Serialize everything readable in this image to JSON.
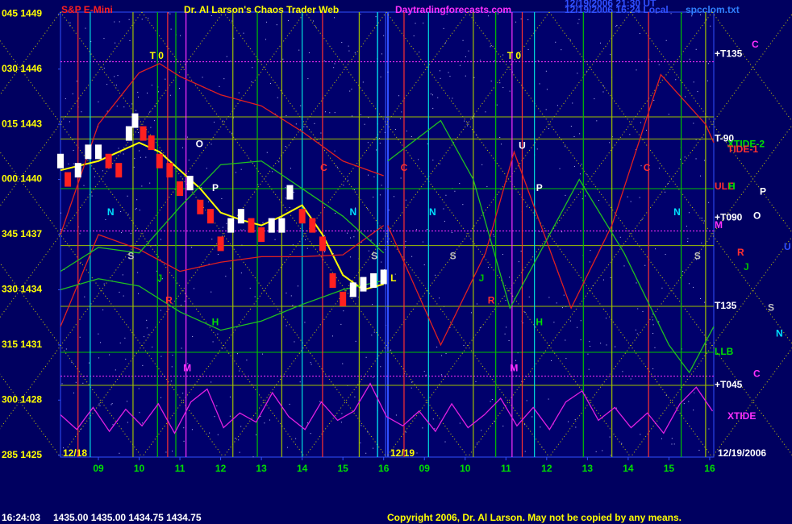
{
  "chart_data": {
    "type": "line",
    "header": {
      "symbol": "S&P E-Mini",
      "title": "Dr. Al Larson's Chaos Trader Web",
      "site": "Daytradingforecasts.com",
      "stamp1": "12/19/2006 21:30 UT",
      "stamp2": "12/19/2006 16:24 Local",
      "file": "spcclom.txt"
    },
    "xlim": [
      8.07,
      24.1
    ],
    "ylim": [
      1424.9,
      1449.1
    ],
    "xticks": [
      {
        "value": 9,
        "label": "09"
      },
      10,
      11,
      12,
      13,
      14,
      15,
      16,
      {
        "value": 17,
        "label": "09"
      },
      {
        "value": 18,
        "label": "10"
      },
      {
        "value": 19,
        "label": "11"
      },
      {
        "value": 20,
        "label": "12"
      },
      {
        "value": 21,
        "label": "13"
      },
      {
        "value": 22,
        "label": "14"
      },
      {
        "value": 23,
        "label": "15"
      },
      {
        "value": 24,
        "label": "16"
      }
    ],
    "yticks": [
      {
        "value": 1449,
        "label": "045 1449"
      },
      {
        "value": 1446,
        "label": "030 1446"
      },
      {
        "value": 1443,
        "label": "015 1443"
      },
      {
        "value": 1440,
        "label": "000 1440"
      },
      {
        "value": 1437,
        "label": "345 1437"
      },
      {
        "value": 1434,
        "label": "330 1434"
      },
      {
        "value": 1431,
        "label": "315 1431"
      },
      {
        "value": 1428,
        "label": "300 1428"
      },
      {
        "value": 1425,
        "label": "285 1425"
      }
    ],
    "day_labels": [
      "12/18",
      "12/19",
      "12/19/2006"
    ],
    "price": {
      "color_up": "#ffffff",
      "color_down": "#ff2020",
      "x": [
        8.07,
        8.25,
        8.5,
        8.75,
        9.0,
        9.25,
        9.5,
        9.75,
        9.9,
        10.1,
        10.3,
        10.5,
        10.75,
        11.0,
        11.25,
        11.5,
        11.75,
        12.0,
        12.25,
        12.5,
        12.75,
        13.0,
        13.25,
        13.5,
        13.7,
        14.0,
        14.25,
        14.5,
        14.75,
        15.0,
        15.25,
        15.5,
        15.75,
        16.0
      ],
      "values": [
        1441,
        1440,
        1440.5,
        1441.5,
        1441.5,
        1441,
        1440.5,
        1442.5,
        1443.2,
        1442.5,
        1442,
        1441,
        1440.5,
        1439.5,
        1439.8,
        1438.5,
        1438,
        1436.5,
        1437.5,
        1438,
        1437.5,
        1437,
        1437.5,
        1437.5,
        1439.3,
        1438,
        1437.5,
        1436.5,
        1434.5,
        1433.5,
        1434,
        1434.3,
        1434.5,
        1434.7
      ]
    },
    "series": [
      {
        "color": "#ffff00",
        "x": [
          8.07,
          9,
          10,
          10.5,
          11,
          11.5,
          12,
          12.5,
          13,
          13.5,
          14,
          14.5,
          15,
          15.5,
          16
        ],
        "values": [
          1440.5,
          1441,
          1442,
          1441.5,
          1440.5,
          1439.5,
          1438.2,
          1437.8,
          1437.5,
          1438,
          1438.6,
          1437,
          1434.8,
          1434,
          1434.3
        ]
      },
      {
        "color": "#e02020",
        "x": [
          8.07,
          9,
          10,
          10.5,
          11,
          12,
          13,
          14,
          15,
          16
        ],
        "values": [
          1437,
          1443,
          1445.8,
          1446.3,
          1445.6,
          1444.6,
          1444,
          1442.6,
          1441,
          1440.2
        ]
      },
      {
        "color": "#e02020",
        "x": [
          8.07,
          9,
          10,
          11,
          12,
          13,
          14,
          15,
          16
        ],
        "values": [
          1432,
          1437,
          1436.2,
          1435,
          1435.5,
          1435.8,
          1435.8,
          1435.9,
          1437.5
        ]
      },
      {
        "color": "#e02020",
        "x": [
          16.1,
          17.4,
          18.5,
          19.2,
          20.6,
          21.6,
          22.8,
          23.9,
          24.1
        ],
        "values": [
          1437.5,
          1431,
          1436,
          1441.5,
          1433,
          1437.5,
          1445.7,
          1443,
          1442
        ]
      },
      {
        "color": "#20c020",
        "x": [
          8.07,
          9,
          10,
          11,
          12,
          13,
          14,
          15,
          16
        ],
        "values": [
          1435,
          1436.3,
          1436,
          1438.5,
          1440.8,
          1441,
          1439.5,
          1438,
          1436
        ]
      },
      {
        "color": "#20c020",
        "x": [
          8.07,
          9,
          10,
          11,
          12,
          13,
          14,
          15,
          16
        ],
        "values": [
          1434,
          1434.6,
          1434.2,
          1432.8,
          1431.8,
          1432.3,
          1433.2,
          1434,
          1434.5
        ]
      },
      {
        "color": "#20c020",
        "x": [
          16.1,
          17.4,
          18.2,
          19.1,
          20.8,
          21.9,
          23.0,
          23.5,
          24.1
        ],
        "values": [
          1441,
          1443.2,
          1440,
          1433,
          1440,
          1436,
          1431,
          1429.5,
          1432
        ]
      },
      {
        "color": "#e020e0",
        "x": [
          8.07,
          8.47,
          8.87,
          9.27,
          9.67,
          10.07,
          10.47,
          10.87,
          11.27,
          11.67,
          12.07,
          12.47,
          12.87,
          13.27,
          13.67,
          14.07,
          14.47,
          14.87,
          15.27,
          15.67,
          16.07,
          16.47,
          16.87,
          17.27,
          17.67,
          18.07,
          18.47,
          18.87,
          19.27,
          19.67,
          20.07,
          20.47,
          20.87,
          21.27,
          21.67,
          22.07,
          22.47,
          22.87,
          23.27,
          23.67,
          24.07
        ],
        "values": [
          1427.2,
          1426.4,
          1427.6,
          1426.3,
          1427.5,
          1426.6,
          1427.8,
          1426.2,
          1427.9,
          1428.6,
          1426.5,
          1427.3,
          1426.8,
          1428.4,
          1427.1,
          1426.4,
          1427.9,
          1426.9,
          1427.4,
          1428.9,
          1427.1,
          1426.6,
          1427.4,
          1426.3,
          1427.8,
          1426.5,
          1427.2,
          1428.1,
          1426.6,
          1427.6,
          1426.4,
          1427.9,
          1428.5,
          1426.9,
          1427.6,
          1426.5,
          1427.3,
          1426.2,
          1427.8,
          1428.7,
          1427.4
        ]
      }
    ],
    "verticals": [
      {
        "x": 8.5,
        "color": "#ff3030"
      },
      {
        "x": 8.8,
        "color": "#00e0e0"
      },
      {
        "x": 9.85,
        "color": "#a0c000"
      },
      {
        "x": 10.45,
        "color": "#00c000"
      },
      {
        "x": 10.7,
        "color": "#ff3030"
      },
      {
        "x": 10.9,
        "color": "#00c000"
      },
      {
        "x": 11.15,
        "color": "#ff30ff"
      },
      {
        "x": 12.3,
        "color": "#a0c000"
      },
      {
        "x": 12.9,
        "color": "#00c000"
      },
      {
        "x": 13.5,
        "color": "#a0c000"
      },
      {
        "x": 14.0,
        "color": "#00e0e0"
      },
      {
        "x": 14.5,
        "color": "#ff3030"
      },
      {
        "x": 15.4,
        "color": "#a0c000"
      },
      {
        "x": 15.85,
        "color": "#00ffff"
      },
      {
        "x": 16.05,
        "color": "#3050ff"
      },
      {
        "x": 16.5,
        "color": "#ff3030"
      },
      {
        "x": 17.1,
        "color": "#00e0e0"
      },
      {
        "x": 18.2,
        "color": "#a0c000"
      },
      {
        "x": 18.75,
        "color": "#00c000"
      },
      {
        "x": 19.15,
        "color": "#ff30ff"
      },
      {
        "x": 19.4,
        "color": "#ff3030"
      },
      {
        "x": 19.7,
        "color": "#00e0e0"
      },
      {
        "x": 20.9,
        "color": "#00c000"
      },
      {
        "x": 21.6,
        "color": "#a0c000"
      },
      {
        "x": 22.5,
        "color": "#ff3030"
      },
      {
        "x": 23.3,
        "color": "#00c000"
      },
      {
        "x": 23.9,
        "color": "#a0c000"
      }
    ],
    "levels": [
      {
        "y": 1446.4,
        "color": "#ff30ff"
      },
      {
        "y": 1443.4,
        "color": "#a0c000"
      },
      {
        "y": 1442.2,
        "color": "#a0c000"
      },
      {
        "y": 1439.5,
        "color": "#00c000"
      },
      {
        "y": 1437.2,
        "color": "#ff30ff"
      },
      {
        "y": 1436.4,
        "color": "#a0c000"
      },
      {
        "y": 1433.1,
        "color": "#a0c000"
      },
      {
        "y": 1430.6,
        "color": "#00c000"
      },
      {
        "y": 1429.3,
        "color": "#ff30ff"
      },
      {
        "y": 1428.8,
        "color": "#a0c000"
      }
    ],
    "annotations": [
      {
        "text": "T 0",
        "x": 10.43,
        "y": 1446.7,
        "color": "#ffff00"
      },
      {
        "text": "T 0",
        "x": 19.2,
        "y": 1446.7,
        "color": "#ffff00"
      },
      {
        "text": "O",
        "x": 11.48,
        "y": 1441.9,
        "color": "#ffffff"
      },
      {
        "text": "U",
        "x": 19.4,
        "y": 1441.8,
        "color": "#ffffff"
      },
      {
        "text": "P",
        "x": 11.87,
        "y": 1439.5,
        "color": "#ffffff"
      },
      {
        "text": "P",
        "x": 19.82,
        "y": 1439.5,
        "color": "#ffffff"
      },
      {
        "text": "N",
        "x": 9.3,
        "y": 1438.2,
        "color": "#00e0ff"
      },
      {
        "text": "N",
        "x": 15.25,
        "y": 1438.2,
        "color": "#00e0ff"
      },
      {
        "text": "N",
        "x": 17.2,
        "y": 1438.2,
        "color": "#00e0ff"
      },
      {
        "text": "N",
        "x": 23.2,
        "y": 1438.2,
        "color": "#00e0ff"
      },
      {
        "text": "S",
        "x": 9.8,
        "y": 1435.8,
        "color": "#c0c0c0"
      },
      {
        "text": "S",
        "x": 15.77,
        "y": 1435.8,
        "color": "#c0c0c0"
      },
      {
        "text": "S",
        "x": 17.7,
        "y": 1435.8,
        "color": "#c0c0c0"
      },
      {
        "text": "S",
        "x": 23.7,
        "y": 1435.8,
        "color": "#c0c0c0"
      },
      {
        "text": "J",
        "x": 10.5,
        "y": 1434.6,
        "color": "#00c000"
      },
      {
        "text": "J",
        "x": 18.4,
        "y": 1434.6,
        "color": "#00c000"
      },
      {
        "text": "R",
        "x": 10.73,
        "y": 1433.4,
        "color": "#ff3030"
      },
      {
        "text": "R",
        "x": 18.64,
        "y": 1433.4,
        "color": "#ff3030"
      },
      {
        "text": "H",
        "x": 11.87,
        "y": 1432.2,
        "color": "#00e000"
      },
      {
        "text": "H",
        "x": 19.82,
        "y": 1432.2,
        "color": "#00e000"
      },
      {
        "text": "M",
        "x": 11.18,
        "y": 1429.7,
        "color": "#ff30ff"
      },
      {
        "text": "M",
        "x": 19.2,
        "y": 1429.7,
        "color": "#ff30ff"
      },
      {
        "text": "C",
        "x": 14.53,
        "y": 1440.6,
        "color": "#ff3030"
      },
      {
        "text": "C",
        "x": 16.5,
        "y": 1440.6,
        "color": "#ff3030"
      },
      {
        "text": "C",
        "x": 22.46,
        "y": 1440.6,
        "color": "#ff3030"
      },
      {
        "text": "L",
        "x": 16.24,
        "y": 1434.6,
        "color": "#ffff00"
      }
    ],
    "right_labels": [
      {
        "text": "C",
        "y": 1447.3,
        "color": "#ff30ff"
      },
      {
        "text": "+T135",
        "y": 1446.8,
        "color": "#ffffff"
      },
      {
        "text": "T-90",
        "y": 1442.2,
        "color": "#ffffff"
      },
      {
        "text": "XTIDE-2",
        "y": 1441.9,
        "color": "#00e000"
      },
      {
        "text": "TIDE-1",
        "y": 1441.6,
        "color": "#ff3030"
      },
      {
        "text": "ULE",
        "y": 1439.6,
        "color": "#ff3030"
      },
      {
        "text": "H",
        "y": 1439.6,
        "color": "#00e000"
      },
      {
        "text": "P",
        "y": 1439.3,
        "color": "#ffffff"
      },
      {
        "text": "+T090",
        "y": 1437.9,
        "color": "#ffffff"
      },
      {
        "text": "O",
        "y": 1438.0,
        "color": "#ffffff"
      },
      {
        "text": "M",
        "y": 1437.5,
        "color": "#ff30ff"
      },
      {
        "text": "U",
        "y": 1436.3,
        "color": "#3050ff"
      },
      {
        "text": "R",
        "y": 1436.0,
        "color": "#ff3030"
      },
      {
        "text": "J",
        "y": 1435.2,
        "color": "#00c000"
      },
      {
        "text": "T135",
        "y": 1433.1,
        "color": "#ffffff"
      },
      {
        "text": "S",
        "y": 1433.0,
        "color": "#c0c0c0"
      },
      {
        "text": "N",
        "y": 1431.6,
        "color": "#00e0ff"
      },
      {
        "text": "LLB",
        "y": 1430.6,
        "color": "#00e000"
      },
      {
        "text": "C",
        "y": 1429.4,
        "color": "#ff30ff"
      },
      {
        "text": "+T045",
        "y": 1428.8,
        "color": "#ffffff"
      },
      {
        "text": "XTIDE",
        "y": 1427.1,
        "color": "#ff30ff"
      }
    ],
    "status": {
      "time": "16:24:03",
      "quote": "1435.00 1435.00 1434.75 1434.75",
      "copyright": "Copyright 2006, Dr. Al Larson. May not be copied by any means."
    }
  }
}
